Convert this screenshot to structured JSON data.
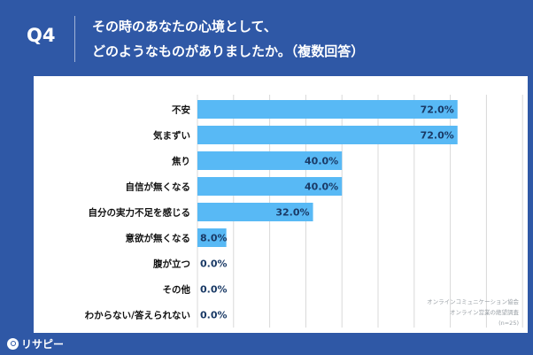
{
  "header": {
    "question": "Q4",
    "title_line1": "その時のあなたの心境として、",
    "title_line2": "どのようなものがありましたか。（複数回答）"
  },
  "source": {
    "line1": "オンラインコミュニケーション協会",
    "line2": "オンライン営業の絶望調査",
    "line3": "(n=25)"
  },
  "brand": {
    "name": "リサピー"
  },
  "colors": {
    "background": "#2f58a6",
    "bar": "#58b9f5",
    "value_text": "#1a3a66",
    "grid": "#d9d9d9"
  },
  "chart_data": {
    "type": "bar",
    "orientation": "horizontal",
    "categories": [
      "不安",
      "気まずい",
      "焦り",
      "自信が無くなる",
      "自分の実力不足を感じる",
      "意欲が無くなる",
      "腹が立つ",
      "その他",
      "わからない/答えられない"
    ],
    "values": [
      72.0,
      72.0,
      40.0,
      40.0,
      32.0,
      8.0,
      0.0,
      0.0,
      0.0
    ],
    "value_labels": [
      "72.0%",
      "72.0%",
      "40.0%",
      "40.0%",
      "32.0%",
      "8.0%",
      "0.0%",
      "0.0%",
      "0.0%"
    ],
    "xlim": [
      0,
      100
    ],
    "grid": true,
    "unit": "%"
  }
}
